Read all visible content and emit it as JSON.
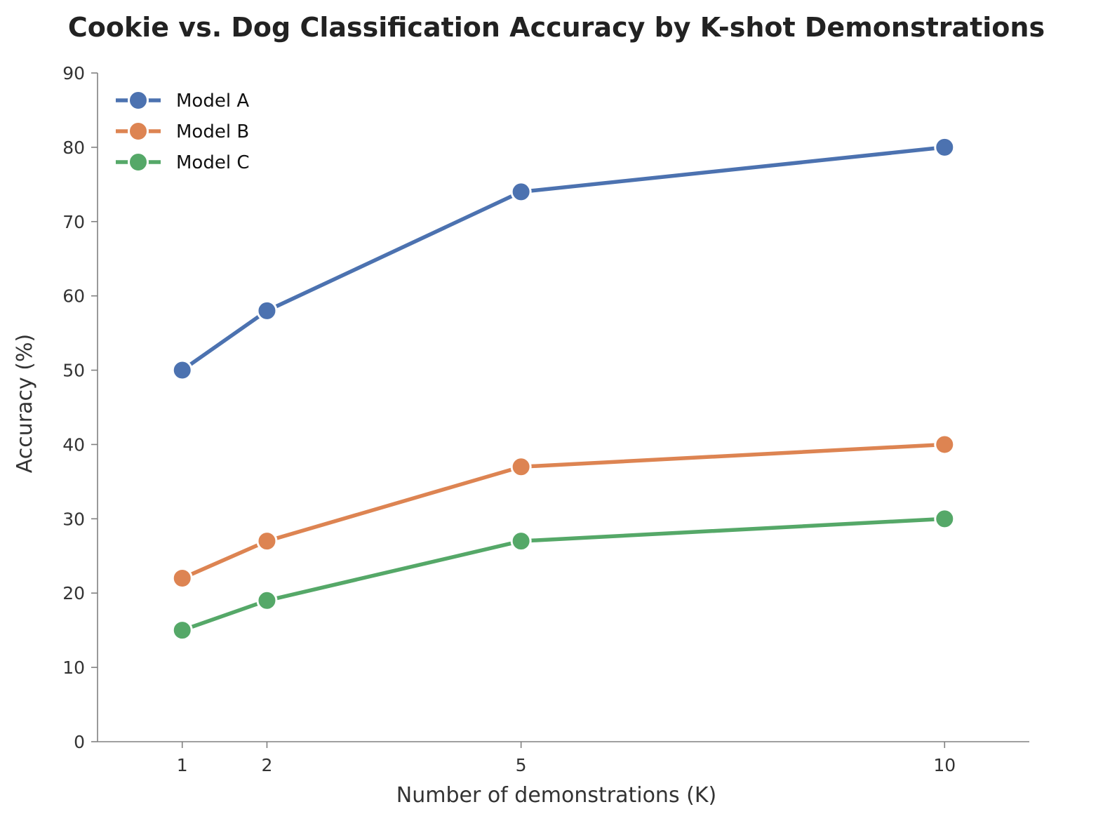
{
  "chart_data": {
    "type": "line",
    "title": "Cookie vs. Dog Classification Accuracy by K-shot Demonstrations",
    "xlabel": "Number of demonstrations (K)",
    "ylabel": "Accuracy (%)",
    "x": [
      1,
      2,
      5,
      10
    ],
    "xticks": [
      "1",
      "2",
      "5",
      "10"
    ],
    "xlim": [
      0,
      11
    ],
    "ylim": [
      0,
      90
    ],
    "yticks": [
      "0",
      "10",
      "20",
      "30",
      "40",
      "50",
      "60",
      "70",
      "80",
      "90"
    ],
    "grid": false,
    "legend_position": "top-left",
    "series": [
      {
        "name": "Model A",
        "color": "#4c72b0",
        "values": [
          50,
          58,
          74,
          80
        ]
      },
      {
        "name": "Model B",
        "color": "#dd8452",
        "values": [
          22,
          27,
          37,
          40
        ]
      },
      {
        "name": "Model C",
        "color": "#55a868",
        "values": [
          15,
          19,
          27,
          30
        ]
      }
    ]
  }
}
